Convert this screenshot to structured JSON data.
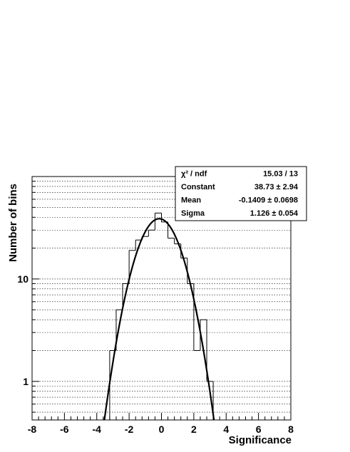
{
  "chart_data": {
    "type": "bar",
    "subtype": "histogram-with-gaussian-fit",
    "xlabel": "Significance",
    "ylabel": "Number of bins",
    "xlim": [
      -8,
      8
    ],
    "ylim": [
      0.42,
      100
    ],
    "y_scale": "log",
    "grid": "horizontal-dotted",
    "x_ticks": [
      "-8",
      "-6",
      "-4",
      "-2",
      "0",
      "2",
      "4",
      "6",
      "8"
    ],
    "y_ticks": [
      "1",
      "10"
    ],
    "histogram": {
      "bin_edges": [
        -3.2,
        -2.8,
        -2.4,
        -2.0,
        -1.6,
        -1.2,
        -0.8,
        -0.4,
        0.0,
        0.4,
        0.8,
        1.2,
        1.6,
        2.0,
        2.4,
        2.8,
        3.2
      ],
      "counts": [
        2,
        5,
        9,
        19,
        24,
        26,
        30,
        44,
        36,
        25,
        22,
        16,
        9,
        2,
        4,
        1
      ]
    },
    "fit": {
      "function": "gaussian",
      "constant": 38.73,
      "mean": -0.1409,
      "sigma": 1.126
    },
    "stats_box": [
      {
        "label": "χ² / ndf",
        "value": "15.03 / 13"
      },
      {
        "label": "Constant",
        "value": "38.73 ± 2.94"
      },
      {
        "label": "Mean",
        "value": "-0.1409 ± 0.0698"
      },
      {
        "label": "Sigma",
        "value": "1.126 ± 0.054"
      }
    ]
  }
}
